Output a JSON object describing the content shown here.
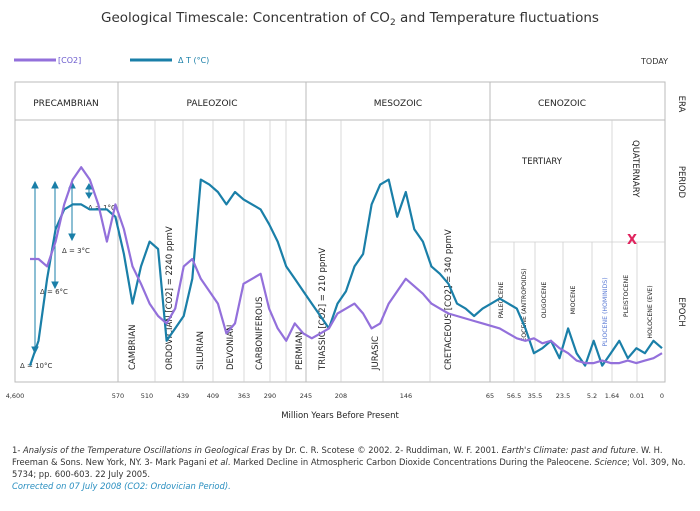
{
  "chart_data": {
    "type": "line",
    "title": "Geological Timescale: Concentration of CO",
    "title_sub": "2",
    "title_rest": " and Temperature fluctuations",
    "legend": [
      {
        "label": "[CO2]",
        "color": "#9370db"
      },
      {
        "label": "Δ T (°C)",
        "color": "#1a7fa8"
      }
    ],
    "today_label": "TODAY",
    "xlabel": "Million Years Before Present",
    "x_ticks": [
      "4,600",
      "570",
      "510",
      "439",
      "409",
      "363",
      "290",
      "245",
      "208",
      "146",
      "65",
      "56.5",
      "35.5",
      "23.5",
      "5.2",
      "1.64",
      "0.01",
      "0"
    ],
    "row_labels": [
      "ERA",
      "PERIOD",
      "EPOCH"
    ],
    "eras": [
      "PRECAMBRIAN",
      "PALEOZOIC",
      "MESOZOIC",
      "CENOZOIC"
    ],
    "periods": [
      "CAMBRIAN",
      "ORDOVICIAN [CO2] = 2240 ppmV",
      "SILURIAN",
      "DEVONIAN",
      "CARBONIFEROUS",
      "PERMIAN",
      "TRIASSIC [CO2] = 210 ppmV",
      "JURASIC",
      "CRETACEOUS [CO2] = 340 ppmV"
    ],
    "tertiary_label": "TERTIARY",
    "quaternary_label": "QUATERNARY",
    "epochs": [
      "PALEOCENE",
      "EOCENE (ANTROPOIDS)",
      "OLIGOCENE",
      "MIOCENE",
      "PLIOCENE (HOMINIDS)",
      "PLEISTOCENE",
      "HOLOCENE (EVE)"
    ],
    "temperature_scale": [
      "Δ = 1°C",
      "Δ = 3°C",
      "Δ = 6°C",
      "Δ = 10°C"
    ],
    "marker": "X",
    "series": [
      {
        "name": "[CO2]",
        "color": "#9370db",
        "x": [
          0,
          1,
          2,
          3,
          4,
          5,
          6,
          7,
          8,
          9,
          10,
          11,
          12,
          13,
          14,
          15,
          16,
          17,
          18,
          19,
          20,
          21,
          22,
          23,
          24,
          25,
          26,
          27,
          28,
          29,
          30,
          31,
          32,
          33,
          34,
          35,
          36,
          37,
          38,
          39,
          40,
          41,
          42,
          43,
          44,
          45,
          46,
          47,
          48,
          49,
          50,
          51,
          52,
          53,
          54,
          55,
          56,
          57,
          58,
          59,
          60,
          61,
          62,
          63,
          64,
          65,
          66,
          67,
          68,
          69,
          70,
          71,
          72,
          73,
          74
        ],
        "y": [
          0.52,
          0.52,
          0.55,
          0.45,
          0.3,
          0.2,
          0.15,
          0.2,
          0.3,
          0.45,
          0.3,
          0.4,
          0.55,
          0.62,
          0.7,
          0.75,
          0.78,
          0.72,
          0.55,
          0.52,
          0.6,
          0.65,
          0.7,
          0.82,
          0.78,
          0.62,
          0.6,
          0.58,
          0.72,
          0.8,
          0.85,
          0.78,
          0.82,
          0.84,
          0.82,
          0.8,
          0.74,
          0.72,
          0.7,
          0.74,
          0.8,
          0.78,
          0.7,
          0.65,
          0.6,
          0.63,
          0.66,
          0.7,
          0.72,
          0.74,
          0.75,
          0.76,
          0.77,
          0.78,
          0.79,
          0.8,
          0.82,
          0.84,
          0.85,
          0.84,
          0.86,
          0.85,
          0.88,
          0.9,
          0.93,
          0.94,
          0.94,
          0.93,
          0.94,
          0.94,
          0.93,
          0.94,
          0.93,
          0.92,
          0.9
        ]
      },
      {
        "name": "Δ T (°C)",
        "color": "#1a7fa8",
        "x": [
          0,
          1,
          2,
          3,
          4,
          5,
          6,
          7,
          8,
          9,
          10,
          11,
          12,
          13,
          14,
          15,
          16,
          17,
          18,
          19,
          20,
          21,
          22,
          23,
          24,
          25,
          26,
          27,
          28,
          29,
          30,
          31,
          32,
          33,
          34,
          35,
          36,
          37,
          38,
          39,
          40,
          41,
          42,
          43,
          44,
          45,
          46,
          47,
          48,
          49,
          50,
          51,
          52,
          53,
          54,
          55,
          56,
          57,
          58,
          59,
          60,
          61,
          62,
          63,
          64,
          65,
          66,
          67,
          68,
          69,
          70,
          71,
          72,
          73,
          74
        ],
        "y": [
          0.95,
          0.85,
          0.6,
          0.4,
          0.32,
          0.3,
          0.3,
          0.32,
          0.32,
          0.32,
          0.35,
          0.5,
          0.7,
          0.55,
          0.45,
          0.48,
          0.85,
          0.8,
          0.75,
          0.6,
          0.2,
          0.22,
          0.25,
          0.3,
          0.25,
          0.28,
          0.3,
          0.32,
          0.38,
          0.45,
          0.55,
          0.6,
          0.65,
          0.7,
          0.75,
          0.8,
          0.7,
          0.65,
          0.55,
          0.5,
          0.3,
          0.22,
          0.2,
          0.35,
          0.25,
          0.4,
          0.45,
          0.55,
          0.58,
          0.62,
          0.7,
          0.72,
          0.75,
          0.72,
          0.7,
          0.68,
          0.7,
          0.72,
          0.8,
          0.9,
          0.88,
          0.85,
          0.92,
          0.8,
          0.9,
          0.95,
          0.85,
          0.95,
          0.9,
          0.85,
          0.92,
          0.88,
          0.9,
          0.85,
          0.88
        ]
      }
    ]
  },
  "footnote": {
    "line1_a": "1- ",
    "line1_b": "Analysis of the Temperature Oscillations in Geological Eras",
    "line1_c": " by Dr. C. R. Scotese © 2002. 2- Ruddiman, W. F. 2001. ",
    "line1_d": "Earth's Climate: past and future",
    "line1_e": ". W. H. Freeman & Sons. New York, NY. 3- Mark Pagani ",
    "line1_f": "et al",
    "line1_g": ". Marked Decline in Atmospheric Carbon Dioxide Concentrations During the Paleocene. ",
    "line1_h": "Science",
    "line1_i": "; Vol. 309, No. 5734; pp. 600-603. 22 July 2005.",
    "correction": "Corrected on 07 July 2008 (CO2: Ordovician Period)."
  }
}
